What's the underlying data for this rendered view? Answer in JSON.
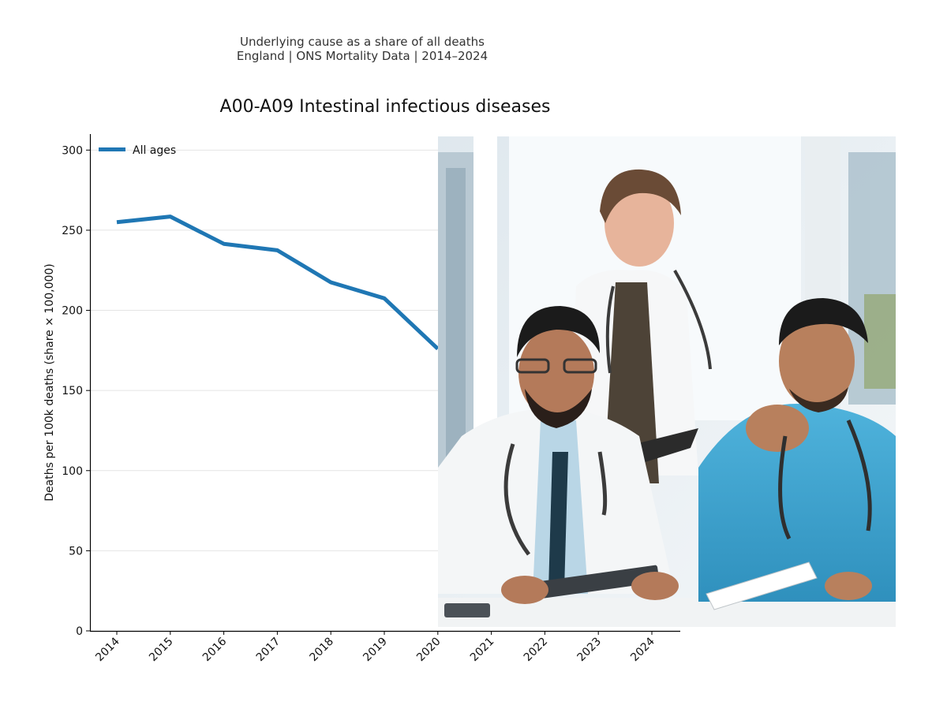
{
  "header": {
    "suptitle_line1": "Underlying cause as a share of all deaths",
    "suptitle_line2": "England | ONS Mortality Data | 2014–2024"
  },
  "chart_data": {
    "type": "line",
    "title": "A00-A09 Intestinal infectious diseases",
    "xlabel": "",
    "ylabel": "Deaths per 100k deaths (share × 100,000)",
    "x": [
      "2014",
      "2015",
      "2016",
      "2017",
      "2018",
      "2019",
      "2020",
      "2021",
      "2022",
      "2023",
      "2024"
    ],
    "ylim": [
      0,
      310
    ],
    "yticks": [
      0,
      50,
      100,
      150,
      200,
      250,
      300
    ],
    "grid": "horizontal",
    "legend_position": "top-left",
    "series": [
      {
        "name": "All ages",
        "color": "#1f77b4",
        "x": [
          "2014",
          "2015",
          "2016",
          "2017",
          "2018",
          "2019",
          "2020"
        ],
        "values": [
          255,
          258.5,
          241.5,
          237.5,
          217.5,
          207.5,
          176
        ]
      }
    ]
  },
  "overlay": {
    "photo_subject": "three-smiling-doctors-at-table-photo"
  }
}
